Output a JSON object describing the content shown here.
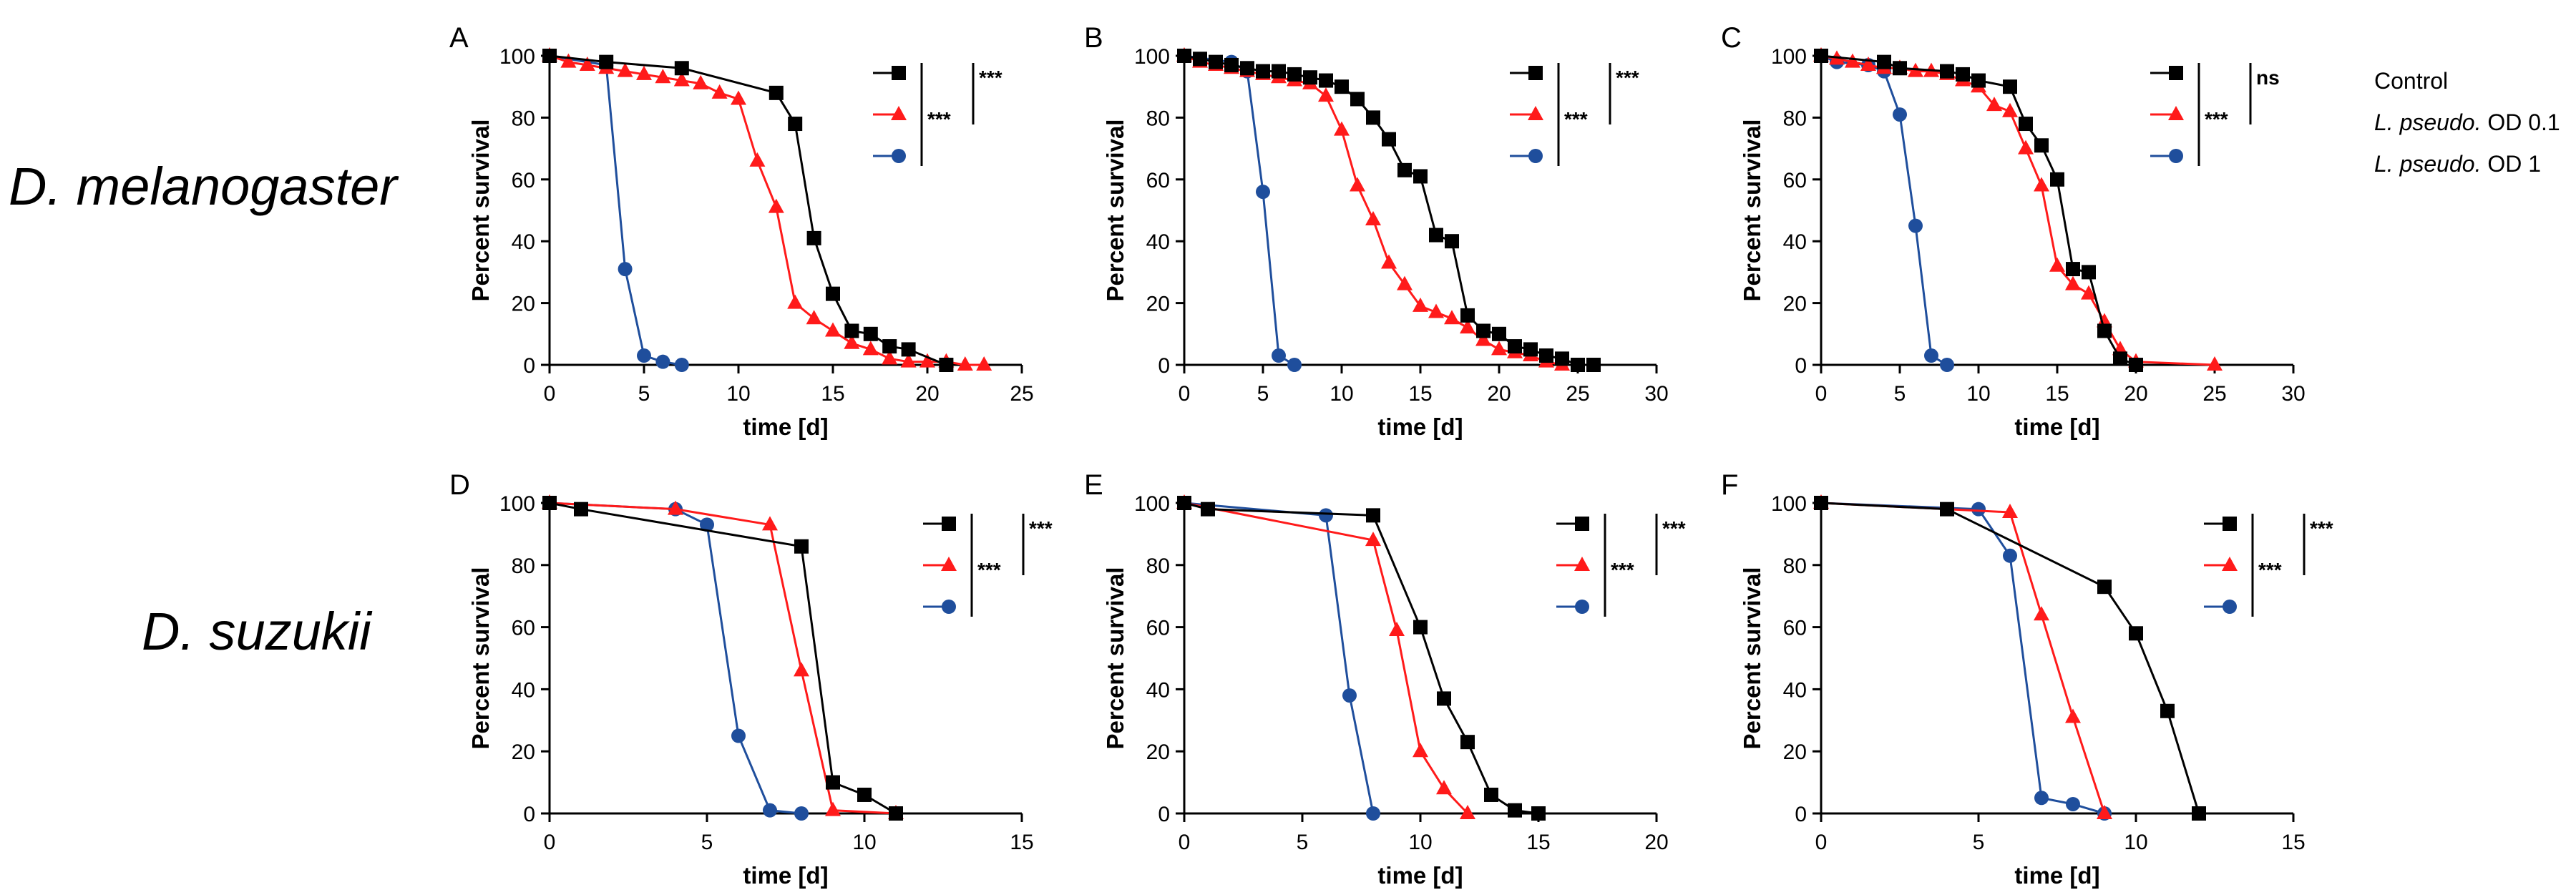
{
  "row_labels": {
    "top": "D. melanogaster",
    "bottom": "D. suzukii"
  },
  "legend": {
    "control": "Control",
    "od01_species": "L. pseudo.",
    "od01_dose": "OD 0.1",
    "od1_species": "L. pseudo.",
    "od1_dose": "OD 1"
  },
  "colors": {
    "control": "#000000",
    "od01": "#ff1a1a",
    "od1": "#1f4e9c"
  },
  "chart_data": [
    {
      "panel": "A",
      "type": "line",
      "xlabel": "time [d]",
      "ylabel": "Percent survival",
      "xlim": [
        0,
        25
      ],
      "ylim": [
        0,
        100
      ],
      "xticks": [
        0,
        5,
        10,
        15,
        20,
        25
      ],
      "yticks": [
        0,
        20,
        40,
        60,
        80,
        100
      ],
      "significance": [
        "***",
        "***"
      ],
      "series": [
        {
          "key": "control",
          "marker": "square",
          "x": [
            0,
            3,
            7,
            12,
            13,
            14,
            15,
            16,
            17,
            18,
            19,
            21
          ],
          "y": [
            100,
            98,
            96,
            88,
            78,
            41,
            23,
            11,
            10,
            6,
            5,
            0
          ]
        },
        {
          "key": "od01",
          "marker": "triangle",
          "x": [
            0,
            1,
            2,
            3,
            4,
            5,
            6,
            7,
            8,
            9,
            10,
            11,
            12,
            13,
            14,
            15,
            16,
            17,
            18,
            19,
            20,
            21,
            22,
            23
          ],
          "y": [
            100,
            98,
            97,
            96,
            95,
            94,
            93,
            92,
            91,
            88,
            86,
            66,
            51,
            20,
            15,
            11,
            7,
            5,
            2,
            1,
            1,
            1,
            0,
            0
          ]
        },
        {
          "key": "od1",
          "marker": "circle",
          "x": [
            0,
            3,
            4,
            5,
            6,
            7
          ],
          "y": [
            100,
            97,
            31,
            3,
            1,
            0
          ]
        }
      ]
    },
    {
      "panel": "B",
      "type": "line",
      "xlabel": "time [d]",
      "ylabel": "Percent survival",
      "xlim": [
        0,
        30
      ],
      "ylim": [
        0,
        100
      ],
      "xticks": [
        0,
        5,
        10,
        15,
        20,
        25,
        30
      ],
      "yticks": [
        0,
        20,
        40,
        60,
        80,
        100
      ],
      "significance": [
        "***",
        "***"
      ],
      "series": [
        {
          "key": "control",
          "marker": "square",
          "x": [
            0,
            1,
            2,
            3,
            4,
            5,
            6,
            7,
            8,
            9,
            10,
            11,
            12,
            13,
            14,
            15,
            16,
            17,
            18,
            19,
            20,
            21,
            22,
            23,
            24,
            25,
            26
          ],
          "y": [
            100,
            99,
            98,
            97,
            96,
            95,
            95,
            94,
            93,
            92,
            90,
            86,
            80,
            73,
            63,
            61,
            42,
            40,
            16,
            11,
            10,
            6,
            5,
            3,
            2,
            0,
            0
          ]
        },
        {
          "key": "od01",
          "marker": "triangle",
          "x": [
            0,
            1,
            2,
            3,
            4,
            5,
            6,
            7,
            8,
            9,
            10,
            11,
            12,
            13,
            14,
            15,
            16,
            17,
            18,
            19,
            20,
            21,
            22,
            23,
            24
          ],
          "y": [
            100,
            98,
            97,
            96,
            95,
            94,
            93,
            92,
            91,
            87,
            76,
            58,
            47,
            33,
            26,
            19,
            17,
            15,
            12,
            8,
            5,
            4,
            3,
            1,
            0
          ]
        },
        {
          "key": "od1",
          "marker": "circle",
          "x": [
            0,
            3,
            4,
            5,
            6,
            7
          ],
          "y": [
            100,
            98,
            95,
            56,
            3,
            0
          ]
        }
      ]
    },
    {
      "panel": "C",
      "type": "line",
      "xlabel": "time [d]",
      "ylabel": "Percent survival",
      "xlim": [
        0,
        30
      ],
      "ylim": [
        0,
        100
      ],
      "xticks": [
        0,
        5,
        10,
        15,
        20,
        25,
        30
      ],
      "yticks": [
        0,
        20,
        40,
        60,
        80,
        100
      ],
      "significance": [
        "***",
        "ns"
      ],
      "series": [
        {
          "key": "control",
          "marker": "square",
          "x": [
            0,
            4,
            5,
            8,
            9,
            10,
            12,
            13,
            14,
            15,
            16,
            17,
            18,
            19,
            20
          ],
          "y": [
            100,
            98,
            96,
            95,
            94,
            92,
            90,
            78,
            71,
            60,
            31,
            30,
            11,
            2,
            0
          ]
        },
        {
          "key": "od01",
          "marker": "triangle",
          "x": [
            0,
            1,
            2,
            3,
            4,
            5,
            6,
            7,
            8,
            9,
            10,
            11,
            12,
            13,
            14,
            15,
            16,
            17,
            18,
            19,
            20,
            25
          ],
          "y": [
            100,
            99,
            98,
            97,
            96,
            96,
            95,
            95,
            94,
            92,
            90,
            84,
            82,
            70,
            58,
            32,
            26,
            23,
            14,
            5,
            1,
            0
          ]
        },
        {
          "key": "od1",
          "marker": "circle",
          "x": [
            0,
            1,
            3,
            4,
            5,
            6,
            7,
            8
          ],
          "y": [
            100,
            98,
            97,
            95,
            81,
            45,
            3,
            0
          ]
        }
      ]
    },
    {
      "panel": "D",
      "type": "line",
      "xlabel": "time [d]",
      "ylabel": "Percent survival",
      "xlim": [
        0,
        15
      ],
      "ylim": [
        0,
        100
      ],
      "xticks": [
        0,
        5,
        10,
        15
      ],
      "yticks": [
        0,
        20,
        40,
        60,
        80,
        100
      ],
      "significance": [
        "***",
        "***"
      ],
      "series": [
        {
          "key": "control",
          "marker": "square",
          "x": [
            0,
            1,
            8,
            9,
            10,
            11
          ],
          "y": [
            100,
            98,
            86,
            10,
            6,
            0
          ]
        },
        {
          "key": "od01",
          "marker": "triangle",
          "x": [
            0,
            4,
            7,
            8,
            9,
            11
          ],
          "y": [
            100,
            98,
            93,
            46,
            1,
            0
          ]
        },
        {
          "key": "od1",
          "marker": "circle",
          "x": [
            0,
            4,
            5,
            6,
            7,
            8
          ],
          "y": [
            100,
            98,
            93,
            25,
            1,
            0
          ]
        }
      ]
    },
    {
      "panel": "E",
      "type": "line",
      "xlabel": "time [d]",
      "ylabel": "Percent survival",
      "xlim": [
        0,
        20
      ],
      "ylim": [
        0,
        100
      ],
      "xticks": [
        0,
        5,
        10,
        15,
        20
      ],
      "yticks": [
        0,
        20,
        40,
        60,
        80,
        100
      ],
      "significance": [
        "***",
        "***"
      ],
      "series": [
        {
          "key": "control",
          "marker": "square",
          "x": [
            0,
            1,
            8,
            10,
            11,
            12,
            13,
            14,
            15
          ],
          "y": [
            100,
            98,
            96,
            60,
            37,
            23,
            6,
            1,
            0
          ]
        },
        {
          "key": "od01",
          "marker": "triangle",
          "x": [
            0,
            8,
            9,
            10,
            11,
            12
          ],
          "y": [
            100,
            88,
            59,
            20,
            8,
            0
          ]
        },
        {
          "key": "od1",
          "marker": "circle",
          "x": [
            0,
            6,
            7,
            8
          ],
          "y": [
            100,
            96,
            38,
            0
          ]
        }
      ]
    },
    {
      "panel": "F",
      "type": "line",
      "xlabel": "time [d]",
      "ylabel": "Percent survival",
      "xlim": [
        0,
        15
      ],
      "ylim": [
        0,
        100
      ],
      "xticks": [
        0,
        5,
        10,
        15
      ],
      "yticks": [
        0,
        20,
        40,
        60,
        80,
        100
      ],
      "significance": [
        "***",
        "***"
      ],
      "series": [
        {
          "key": "control",
          "marker": "square",
          "x": [
            0,
            4,
            9,
            10,
            11,
            12
          ],
          "y": [
            100,
            98,
            73,
            58,
            33,
            0
          ]
        },
        {
          "key": "od01",
          "marker": "triangle",
          "x": [
            0,
            6,
            7,
            8,
            9
          ],
          "y": [
            100,
            97,
            64,
            31,
            0
          ]
        },
        {
          "key": "od1",
          "marker": "circle",
          "x": [
            0,
            5,
            6,
            7,
            8,
            9
          ],
          "y": [
            100,
            98,
            83,
            5,
            3,
            0
          ]
        }
      ]
    }
  ]
}
